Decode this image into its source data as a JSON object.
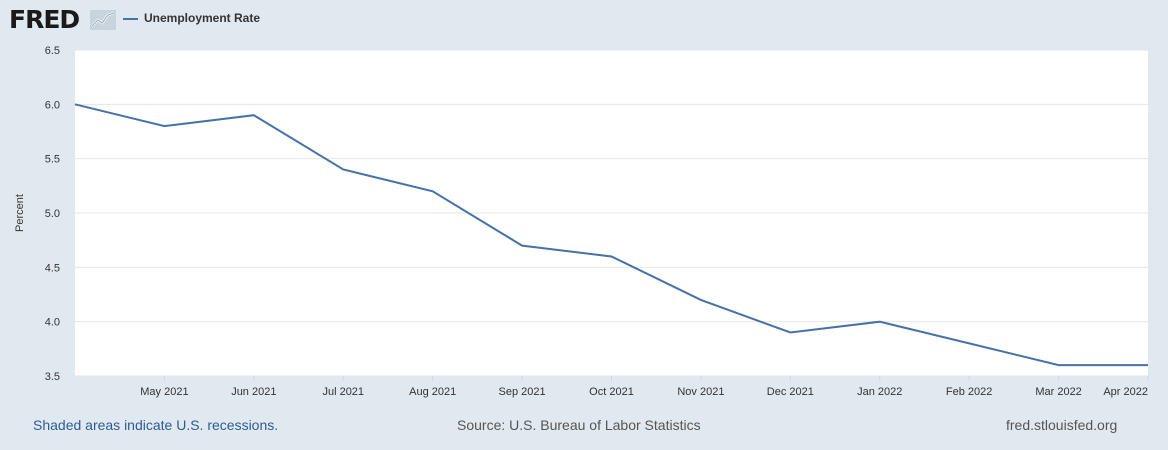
{
  "header": {
    "logo_text": "FRED",
    "logo_icon": "chart-trend-icon"
  },
  "colors": {
    "page_background": "#e1e9f0",
    "plot_background": "#ffffff",
    "series_line": "#4572a7",
    "gridline": "#e6e6e6",
    "footer_link": "#2e5b93"
  },
  "footer": {
    "recession_note": "Shaded areas indicate U.S. recessions.",
    "source": "Source: U.S. Bureau of Labor Statistics",
    "site": "fred.stlouisfed.org"
  },
  "chart_data": {
    "type": "line",
    "title": "",
    "xlabel": "",
    "ylabel": "Percent",
    "x": [
      "2021-04",
      "2021-05",
      "2021-06",
      "2021-07",
      "2021-08",
      "2021-09",
      "2021-10",
      "2021-11",
      "2021-12",
      "2022-01",
      "2022-02",
      "2022-03",
      "2022-04"
    ],
    "x_tick_labels": [
      "May 2021",
      "Jun 2021",
      "Jul 2021",
      "Aug 2021",
      "Sep 2021",
      "Oct 2021",
      "Nov 2021",
      "Dec 2021",
      "Jan 2022",
      "Feb 2022",
      "Mar 2022",
      "Apr 2022"
    ],
    "series": [
      {
        "name": "Unemployment Rate",
        "values": [
          6.0,
          5.8,
          5.9,
          5.4,
          5.2,
          4.7,
          4.6,
          4.2,
          3.9,
          4.0,
          3.8,
          3.6,
          3.6
        ]
      }
    ],
    "ylim": [
      3.5,
      6.5
    ],
    "y_ticks": [
      "3.5",
      "4.0",
      "4.5",
      "5.0",
      "5.5",
      "6.0",
      "6.5"
    ],
    "grid": true,
    "legend_position": "top-left"
  }
}
